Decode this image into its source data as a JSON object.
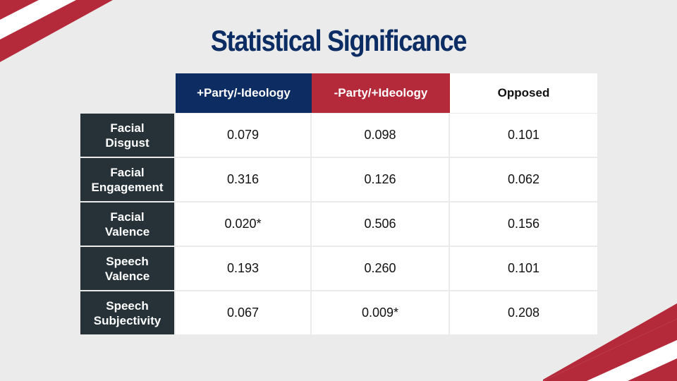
{
  "title": "Statistical Significance",
  "colors": {
    "navy": "#0d2d62",
    "red": "#b52a3a",
    "row_label_bg": "#263238",
    "background": "#ebebeb"
  },
  "table": {
    "headers": [
      "+Party/-Ideology",
      "-Party/+Ideology",
      "Opposed"
    ],
    "rows": [
      {
        "label_line1": "Facial",
        "label_line2": "Disgust",
        "values": [
          "0.079",
          "0.098",
          "0.101"
        ]
      },
      {
        "label_line1": "Facial",
        "label_line2": "Engagement",
        "values": [
          "0.316",
          "0.126",
          "0.062"
        ]
      },
      {
        "label_line1": "Facial",
        "label_line2": "Valence",
        "values": [
          "0.020*",
          "0.506",
          "0.156"
        ]
      },
      {
        "label_line1": "Speech",
        "label_line2": "Valence",
        "values": [
          "0.193",
          "0.260",
          "0.101"
        ]
      },
      {
        "label_line1": "Speech",
        "label_line2": "Subjectivity",
        "values": [
          "0.067",
          "0.009*",
          "0.208"
        ]
      }
    ]
  }
}
